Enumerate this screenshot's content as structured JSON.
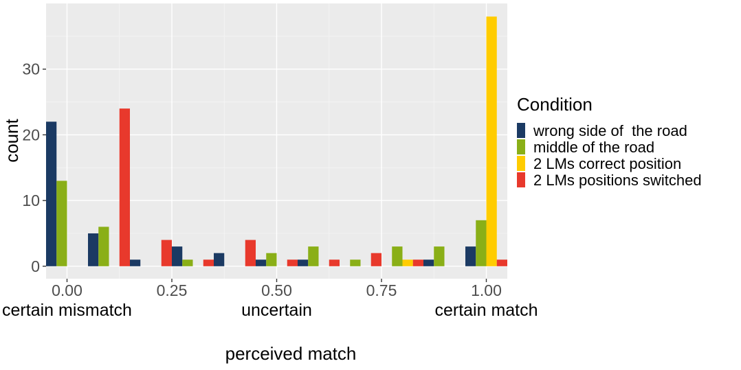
{
  "chart_data": {
    "type": "bar",
    "xlabel": "perceived match",
    "ylabel": "count",
    "legend_title": "Condition",
    "legend_position": "right",
    "grid": true,
    "xlim": [
      -0.05,
      1.05
    ],
    "ylim": [
      -1.9,
      40
    ],
    "x_ticks": [
      {
        "value": 0.0,
        "label": "0.00",
        "sublabel": "certain mismatch"
      },
      {
        "value": 0.25,
        "label": "0.25",
        "sublabel": ""
      },
      {
        "value": 0.5,
        "label": "0.50",
        "sublabel": "uncertain"
      },
      {
        "value": 0.75,
        "label": "0.75",
        "sublabel": ""
      },
      {
        "value": 1.0,
        "label": "1.00",
        "sublabel": "certain match"
      }
    ],
    "y_ticks": [
      0,
      10,
      20,
      30
    ],
    "bin_centers": [
      0.0,
      0.1,
      0.2,
      0.3,
      0.4,
      0.5,
      0.6,
      0.7,
      0.8,
      0.9,
      1.0
    ],
    "series": [
      {
        "name": "wrong side of  the road",
        "color": "#1b3a63",
        "values": [
          22,
          5,
          1,
          3,
          2,
          1,
          1,
          0,
          0,
          1,
          3
        ]
      },
      {
        "name": "middle of the road",
        "color": "#8aaf17",
        "values": [
          13,
          6,
          0,
          1,
          0,
          2,
          3,
          1,
          3,
          3,
          7
        ]
      },
      {
        "name": "2 LMs correct position",
        "color": "#ffcc00",
        "values": [
          0,
          0,
          0,
          0,
          0,
          0,
          0,
          0,
          1,
          0,
          38
        ]
      },
      {
        "name": "2 LMs positions switched",
        "color": "#e8392c",
        "values": [
          0,
          24,
          4,
          1,
          4,
          1,
          1,
          2,
          1,
          0,
          1
        ]
      }
    ]
  }
}
